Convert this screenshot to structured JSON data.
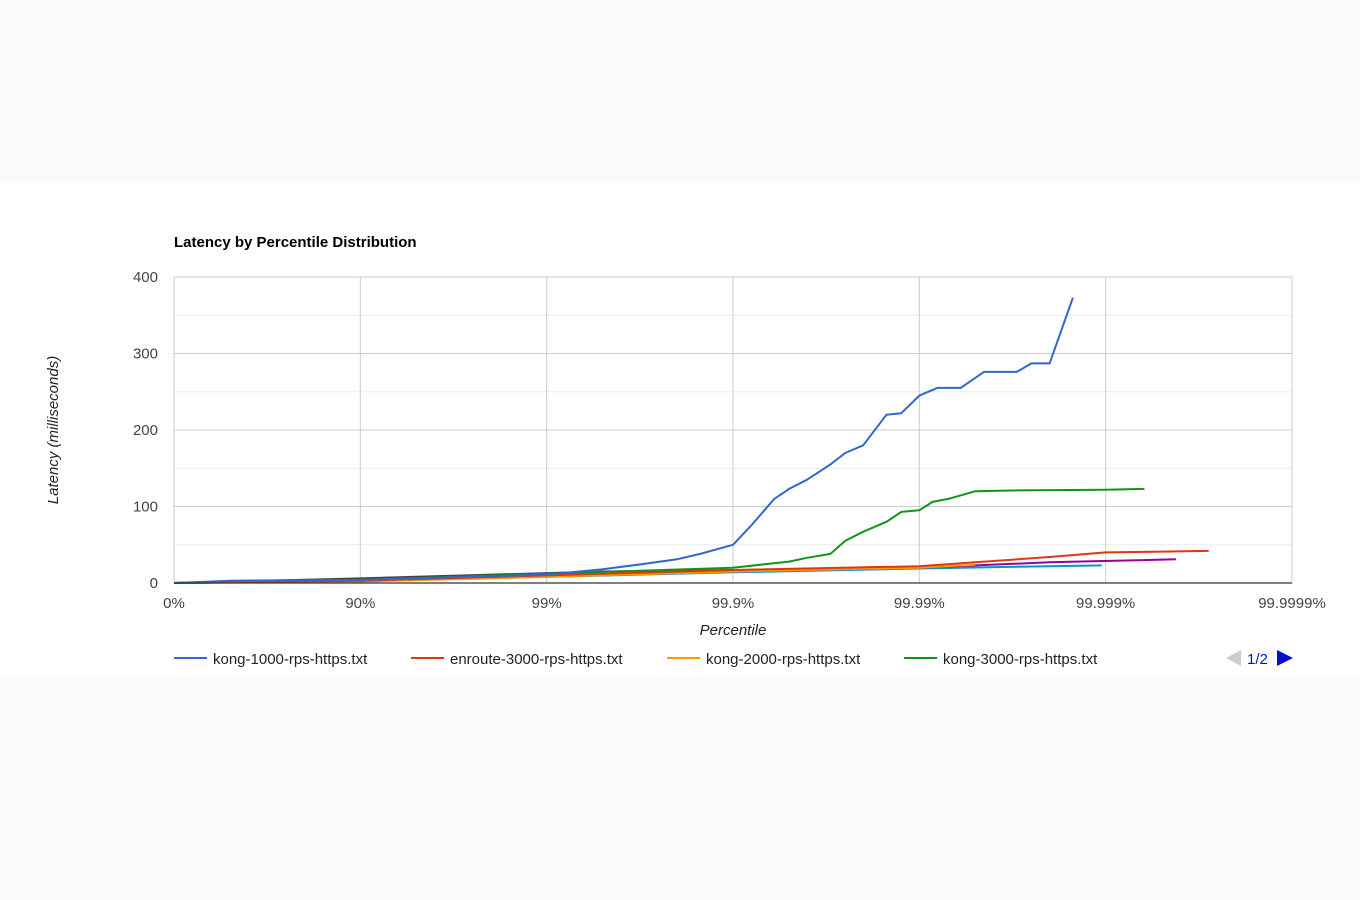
{
  "chart_data": {
    "type": "line",
    "title": "Latency by Percentile Distribution",
    "xlabel": "Percentile",
    "ylabel": "Latency (milliseconds)",
    "x_scale": "log-percentile",
    "x_ticks": [
      "0%",
      "90%",
      "99%",
      "99.9%",
      "99.99%",
      "99.999%",
      "99.9999%"
    ],
    "y_ticks": [
      "0",
      "100",
      "200",
      "300",
      "400"
    ],
    "ylim": [
      0,
      400
    ],
    "grid": true,
    "legend_position": "bottom",
    "legend_page": "1/2",
    "series": [
      {
        "name": "kong-1000-rps-https.txt",
        "color": "#3366cc",
        "points": [
          [
            "0%",
            0
          ],
          [
            "50%",
            3
          ],
          [
            "90%",
            4
          ],
          [
            "99%",
            11
          ],
          [
            "99.5%",
            18
          ],
          [
            "99.7%",
            25
          ],
          [
            "99.8%",
            31
          ],
          [
            "99.85%",
            38
          ],
          [
            "99.9%",
            50
          ],
          [
            "99.92%",
            75
          ],
          [
            "99.94%",
            110
          ],
          [
            "99.95%",
            123
          ],
          [
            "99.96%",
            135
          ],
          [
            "99.97%",
            155
          ],
          [
            "99.975%",
            170
          ],
          [
            "99.98%",
            180
          ],
          [
            "99.985%",
            220
          ],
          [
            "99.9875%",
            222
          ],
          [
            "99.99%",
            245
          ],
          [
            "99.992%",
            255
          ],
          [
            "99.994%",
            255
          ],
          [
            "99.9955%",
            276
          ],
          [
            "99.997%",
            276
          ],
          [
            "99.9975%",
            287
          ],
          [
            "99.998%",
            287
          ],
          [
            "99.9985%",
            373
          ]
        ]
      },
      {
        "name": "enroute-3000-rps-https.txt",
        "color": "#dc3912",
        "points": [
          [
            "0%",
            0
          ],
          [
            "90%",
            3
          ],
          [
            "99%",
            10
          ],
          [
            "99.9%",
            17
          ],
          [
            "99.99%",
            22
          ],
          [
            "99.995%",
            27
          ],
          [
            "99.998%",
            34
          ],
          [
            "99.999%",
            40
          ],
          [
            "99.9995%",
            41
          ],
          [
            "99.99972%",
            42
          ]
        ]
      },
      {
        "name": "kong-2000-rps-https.txt",
        "color": "#ff9900",
        "points": [
          [
            "0%",
            0
          ],
          [
            "90%",
            2
          ],
          [
            "99%",
            8
          ],
          [
            "99.9%",
            15
          ],
          [
            "99.99%",
            20
          ],
          [
            "99.995%",
            24
          ]
        ]
      },
      {
        "name": "kong-3000-rps-https.txt",
        "color": "#109618",
        "points": [
          [
            "0%",
            0
          ],
          [
            "90%",
            4
          ],
          [
            "99%",
            12
          ],
          [
            "99.9%",
            20
          ],
          [
            "99.95%",
            28
          ],
          [
            "99.96%",
            33
          ],
          [
            "99.97%",
            38
          ],
          [
            "99.975%",
            55
          ],
          [
            "99.98%",
            67
          ],
          [
            "99.985%",
            80
          ],
          [
            "99.9875%",
            93
          ],
          [
            "99.99%",
            95
          ],
          [
            "99.9915%",
            106
          ],
          [
            "99.993%",
            110
          ],
          [
            "99.995%",
            120
          ],
          [
            "99.997%",
            121
          ],
          [
            "99.999%",
            122
          ],
          [
            "99.99938%",
            123
          ]
        ]
      },
      {
        "color": "#990099",
        "points": [
          [
            "0%",
            0
          ],
          [
            "90%",
            3
          ],
          [
            "99%",
            10
          ],
          [
            "99.9%",
            15
          ],
          [
            "99.99%",
            20
          ],
          [
            "99.998%",
            27
          ],
          [
            "99.9991%",
            29
          ],
          [
            "99.99958%",
            31
          ]
        ]
      },
      {
        "color": "#0099c6",
        "points": [
          [
            "0%",
            0
          ],
          [
            "90%",
            3
          ],
          [
            "99%",
            8
          ],
          [
            "99.9%",
            14
          ],
          [
            "99.99%",
            19
          ],
          [
            "99.998%",
            22
          ],
          [
            "99.99895%",
            23
          ]
        ]
      },
      {
        "color": "#444444",
        "points": [
          [
            "0%",
            0
          ],
          [
            "90%",
            6
          ],
          [
            "99%",
            13
          ],
          [
            "99.5%",
            15
          ],
          [
            "99.9%",
            17
          ]
        ]
      }
    ]
  }
}
